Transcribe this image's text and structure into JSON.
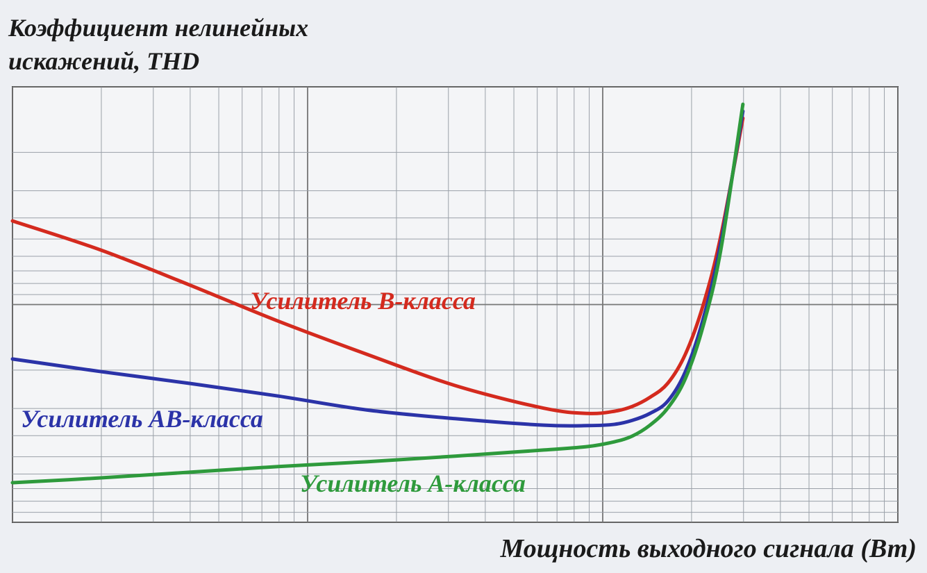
{
  "chart_data": {
    "type": "line",
    "y_label": [
      "Коэффициент нелинейных",
      "искажений, THD"
    ],
    "x_label": "Мощность выходного сигнала (Вт)",
    "x": [
      0,
      10,
      20,
      30,
      40,
      50,
      60,
      65,
      68,
      70,
      72,
      74,
      76,
      78,
      80,
      82.5
    ],
    "xlim": [
      0,
      100
    ],
    "ylim": [
      0,
      100
    ],
    "series": [
      {
        "name": "Усилитель B-класса",
        "color": "#d42a1e",
        "values": [
          69.2,
          62.5,
          54.5,
          46.2,
          38.6,
          31.4,
          26.2,
          25.0,
          25.5,
          26.6,
          28.7,
          31.9,
          38.6,
          49.8,
          65.7,
          92.8
        ]
      },
      {
        "name": "Усилитель AB-класса",
        "color": "#2b33a8",
        "values": [
          37.5,
          34.6,
          31.9,
          29.0,
          25.8,
          23.8,
          22.3,
          22.2,
          22.5,
          23.4,
          25.0,
          27.8,
          34.6,
          46.6,
          64.1,
          94.4
        ]
      },
      {
        "name": "Усилитель A-класса",
        "color": "#2e9a3c",
        "values": [
          9.1,
          10.2,
          11.5,
          12.8,
          13.9,
          15.2,
          16.6,
          17.4,
          18.5,
          19.8,
          22.3,
          26.2,
          33.0,
          45.0,
          62.5,
          96.0
        ]
      }
    ]
  }
}
